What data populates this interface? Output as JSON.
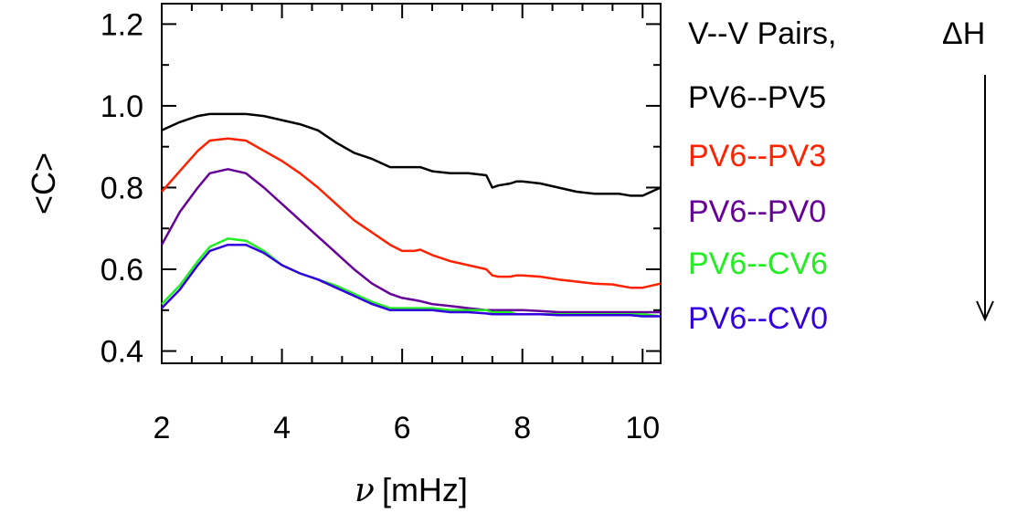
{
  "chart_data": {
    "type": "line",
    "xlabel_symbol": "ν",
    "xlabel": "[mHz]",
    "ylabel": "<C>",
    "xlim": [
      2.0,
      10.3
    ],
    "ylim": [
      0.37,
      1.25
    ],
    "xticks": [
      2,
      4,
      6,
      8,
      10
    ],
    "yticks": [
      0.4,
      0.6,
      0.8,
      1.0,
      1.2
    ],
    "ytick_labels": [
      "0.4",
      "0.6",
      "0.8",
      "1.0",
      "1.2"
    ],
    "legend_title": "V--V Pairs,",
    "arrow_label": "ΔH",
    "x": [
      2.0,
      2.3,
      2.6,
      2.8,
      3.1,
      3.4,
      3.7,
      4.0,
      4.3,
      4.6,
      4.9,
      5.2,
      5.5,
      5.8,
      6.0,
      6.2,
      6.3,
      6.5,
      6.8,
      7.1,
      7.4,
      7.5,
      7.6,
      7.8,
      7.9,
      8.0,
      8.3,
      8.6,
      8.9,
      9.2,
      9.5,
      9.6,
      9.8,
      10.0,
      10.3
    ],
    "series": [
      {
        "name": "PV6--PV5",
        "color": "#000000",
        "values": [
          0.94,
          0.96,
          0.975,
          0.98,
          0.98,
          0.98,
          0.975,
          0.965,
          0.955,
          0.94,
          0.91,
          0.885,
          0.87,
          0.85,
          0.85,
          0.85,
          0.85,
          0.84,
          0.835,
          0.835,
          0.83,
          0.8,
          0.805,
          0.81,
          0.815,
          0.815,
          0.81,
          0.8,
          0.79,
          0.785,
          0.785,
          0.785,
          0.78,
          0.78,
          0.8
        ]
      },
      {
        "name": "PV6--PV3",
        "color": "#ff2200",
        "values": [
          0.79,
          0.84,
          0.89,
          0.915,
          0.92,
          0.915,
          0.89,
          0.865,
          0.835,
          0.8,
          0.76,
          0.72,
          0.69,
          0.66,
          0.645,
          0.645,
          0.648,
          0.635,
          0.62,
          0.61,
          0.6,
          0.585,
          0.582,
          0.582,
          0.585,
          0.585,
          0.582,
          0.575,
          0.57,
          0.565,
          0.563,
          0.56,
          0.555,
          0.555,
          0.565
        ]
      },
      {
        "name": "PV6--PV0",
        "color": "#660099",
        "values": [
          0.66,
          0.74,
          0.8,
          0.835,
          0.845,
          0.835,
          0.8,
          0.76,
          0.72,
          0.68,
          0.64,
          0.6,
          0.565,
          0.54,
          0.53,
          0.525,
          0.522,
          0.515,
          0.51,
          0.505,
          0.5,
          0.5,
          0.5,
          0.5,
          0.5,
          0.5,
          0.498,
          0.495,
          0.495,
          0.495,
          0.495,
          0.495,
          0.495,
          0.495,
          0.495
        ]
      },
      {
        "name": "PV6--CV6",
        "color": "#22ee22",
        "values": [
          0.515,
          0.56,
          0.62,
          0.655,
          0.675,
          0.67,
          0.645,
          0.61,
          0.59,
          0.575,
          0.56,
          0.54,
          0.52,
          0.505,
          0.505,
          0.505,
          0.505,
          0.505,
          0.5,
          0.5,
          0.5,
          0.495,
          0.495,
          0.495,
          0.49,
          0.49,
          0.49,
          0.49,
          0.49,
          0.49,
          0.49,
          0.49,
          0.49,
          0.49,
          0.485
        ]
      },
      {
        "name": "PV6--CV0",
        "color": "#3300dd",
        "values": [
          0.505,
          0.55,
          0.61,
          0.645,
          0.66,
          0.66,
          0.64,
          0.61,
          0.59,
          0.575,
          0.555,
          0.535,
          0.515,
          0.5,
          0.5,
          0.5,
          0.5,
          0.5,
          0.495,
          0.495,
          0.492,
          0.49,
          0.49,
          0.49,
          0.49,
          0.49,
          0.49,
          0.488,
          0.488,
          0.488,
          0.488,
          0.488,
          0.488,
          0.485,
          0.485
        ]
      }
    ]
  }
}
